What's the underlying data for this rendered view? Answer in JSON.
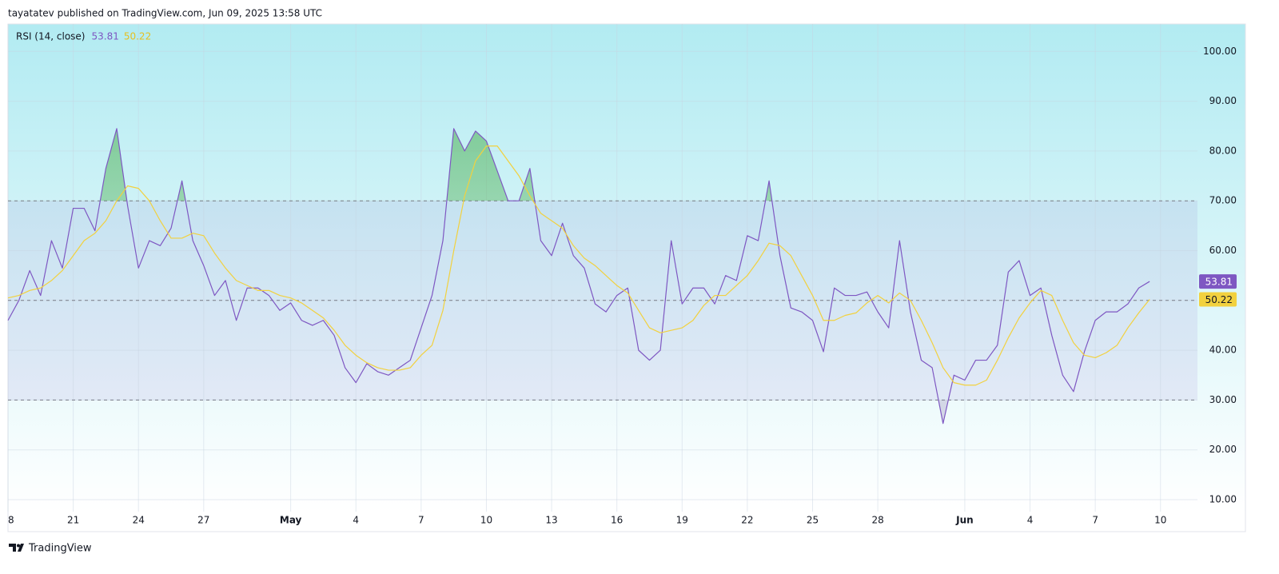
{
  "header": "tayatatev published on TradingView.com, Jun 09, 2025 13:58 UTC",
  "footer": "TradingView",
  "chart_data": {
    "type": "line",
    "title": "RSI (14, close)",
    "x": [
      0,
      0.5,
      1,
      1.5,
      2,
      2.5,
      3,
      3.5,
      4,
      4.5,
      5,
      5.5,
      6,
      6.5,
      7,
      7.5,
      8,
      8.5,
      9,
      9.5,
      10,
      10.5,
      11,
      11.5,
      12,
      12.5,
      13,
      13.5,
      14,
      14.5,
      15,
      15.5,
      16,
      16.5,
      17,
      17.5,
      18,
      18.5,
      19,
      19.5,
      20,
      20.5,
      21,
      21.5,
      22,
      22.5,
      23,
      23.5,
      24,
      24.5,
      25,
      25.5,
      26,
      26.5,
      27,
      27.5,
      28,
      28.5,
      29,
      29.5,
      30,
      30.5,
      31,
      31.5,
      32,
      32.5,
      33,
      33.5,
      34,
      34.5,
      35,
      35.5,
      36,
      36.5,
      37,
      37.5,
      38,
      38.5,
      39,
      39.5,
      40,
      40.5,
      41,
      41.5,
      42,
      42.5,
      43,
      43.5,
      44,
      44.5,
      45,
      45.5,
      46,
      46.5,
      47,
      47.5,
      48,
      48.5,
      49,
      49.5,
      50,
      50.5,
      51,
      51.5,
      52,
      52.5
    ],
    "series": [
      {
        "color": "#7e57c2",
        "values": [
          46,
          50,
          56,
          51,
          62,
          56.5,
          68.5,
          68.5,
          64,
          76.5,
          84.5,
          69,
          56.5,
          62,
          61,
          64.5,
          74,
          62,
          57,
          51,
          54,
          46,
          52.5,
          52.5,
          51,
          48,
          49.5,
          46,
          45,
          46,
          43,
          36.5,
          33.5,
          37.3,
          35.7,
          35,
          36.5,
          38,
          44.5,
          51,
          62,
          84.5,
          80,
          84,
          82,
          76,
          70,
          70,
          76.5,
          62,
          59,
          65.5,
          59,
          56.5,
          49.3,
          47.7,
          51,
          52.5,
          40,
          38,
          40,
          62,
          49.3,
          52.5,
          52.5,
          49.3,
          55,
          54,
          63,
          62,
          74,
          59,
          48.5,
          47.7,
          46,
          39.7,
          52.5,
          51,
          51,
          51.7,
          47.7,
          44.5,
          62,
          47.7,
          38,
          36.5,
          25.3,
          35,
          34,
          38,
          38,
          41,
          55.7,
          58,
          51,
          52.5,
          43,
          35,
          31.7,
          39.7,
          46,
          47.7,
          47.7,
          49.3,
          52.5,
          53.81
        ]
      },
      {
        "color": "#f2d13e",
        "values": [
          50.5,
          51,
          52,
          52.5,
          54,
          56,
          59,
          62,
          63.5,
          66,
          70,
          73,
          72.5,
          70,
          66,
          62.5,
          62.5,
          63.5,
          63,
          59.5,
          56.5,
          54,
          53,
          52,
          52,
          51,
          50.5,
          49.5,
          48,
          46.5,
          44,
          41,
          39,
          37.5,
          36.5,
          36,
          36,
          36.5,
          39,
          41,
          48,
          60,
          71,
          78,
          81,
          81,
          78,
          75,
          71,
          67.5,
          66,
          64.5,
          61,
          58.5,
          57,
          55,
          53,
          51.5,
          48,
          44.5,
          43.5,
          44,
          44.5,
          46,
          49,
          51,
          51,
          53,
          55,
          58,
          61.5,
          61,
          59,
          55,
          51,
          46,
          46,
          47,
          47.5,
          49.5,
          51,
          49.5,
          51.5,
          50,
          46,
          41.5,
          36.5,
          33.5,
          33,
          33,
          34,
          38,
          42.5,
          46.5,
          49.5,
          52,
          51,
          46,
          41.5,
          39,
          38.5,
          39.5,
          41,
          44.5,
          47.5,
          50.22
        ]
      }
    ],
    "xlim": [
      0,
      54.7
    ],
    "xticks": [
      {
        "value": 0,
        "label": "8"
      },
      {
        "value": 3,
        "label": "21"
      },
      {
        "value": 6,
        "label": "24"
      },
      {
        "value": 9,
        "label": "27"
      },
      {
        "value": 13,
        "label": "May"
      },
      {
        "value": 16,
        "label": "4"
      },
      {
        "value": 19,
        "label": "7"
      },
      {
        "value": 22,
        "label": "10"
      },
      {
        "value": 25,
        "label": "13"
      },
      {
        "value": 28,
        "label": "16"
      },
      {
        "value": 31,
        "label": "19"
      },
      {
        "value": 34,
        "label": "22"
      },
      {
        "value": 37,
        "label": "25"
      },
      {
        "value": 40,
        "label": "28"
      },
      {
        "value": 44,
        "label": "Jun"
      },
      {
        "value": 47,
        "label": "4"
      },
      {
        "value": 50,
        "label": "7"
      },
      {
        "value": 53,
        "label": "10"
      }
    ],
    "ylim": [
      7.6,
      105.5
    ],
    "yticks": [
      {
        "value": 10,
        "label": "10.00"
      },
      {
        "value": 20,
        "label": "20.00"
      },
      {
        "value": 30,
        "label": "30.00"
      },
      {
        "value": 40,
        "label": "40.00"
      },
      {
        "value": 50,
        "label": "50.00"
      },
      {
        "value": 60,
        "label": "60.00"
      },
      {
        "value": 70,
        "label": "70.00"
      },
      {
        "value": 80,
        "label": "80.00"
      },
      {
        "value": 90,
        "label": "90.00"
      },
      {
        "value": 100,
        "label": "100.00"
      }
    ],
    "levels": [
      70,
      50,
      30
    ],
    "grid": true
  }
}
